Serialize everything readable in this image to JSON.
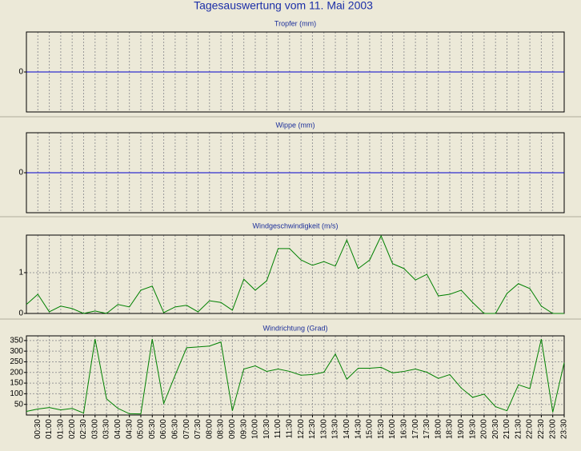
{
  "title": "Tagesauswertung vom 11. Mai 2003",
  "chart_data": [
    {
      "type": "line",
      "title": "Tropfer (mm)",
      "ylim": [
        -1,
        1
      ],
      "yticks": [
        0
      ],
      "grid": true,
      "series": [
        {
          "color": "#0000cc",
          "values": [
            0,
            0,
            0,
            0,
            0,
            0,
            0,
            0,
            0,
            0,
            0,
            0,
            0,
            0,
            0,
            0,
            0,
            0,
            0,
            0,
            0,
            0,
            0,
            0,
            0,
            0,
            0,
            0,
            0,
            0,
            0,
            0,
            0,
            0,
            0,
            0,
            0,
            0,
            0,
            0,
            0,
            0,
            0,
            0,
            0,
            0,
            0,
            0
          ]
        }
      ]
    },
    {
      "type": "line",
      "title": "Wippe (mm)",
      "ylim": [
        -1,
        1
      ],
      "yticks": [
        0
      ],
      "grid": true,
      "series": [
        {
          "color": "#0000cc",
          "values": [
            0,
            0,
            0,
            0,
            0,
            0,
            0,
            0,
            0,
            0,
            0,
            0,
            0,
            0,
            0,
            0,
            0,
            0,
            0,
            0,
            0,
            0,
            0,
            0,
            0,
            0,
            0,
            0,
            0,
            0,
            0,
            0,
            0,
            0,
            0,
            0,
            0,
            0,
            0,
            0,
            0,
            0,
            0,
            0,
            0,
            0,
            0,
            0
          ]
        }
      ]
    },
    {
      "type": "line",
      "title": "Windgeschwindigkeit (m/s)",
      "ylim": [
        0,
        1.92
      ],
      "yticks": [
        0,
        1
      ],
      "grid": true,
      "series": [
        {
          "color": "#008000",
          "values": [
            0.22,
            0.47,
            0.04,
            0.18,
            0.12,
            0,
            0.06,
            0,
            0.22,
            0.16,
            0.57,
            0.67,
            0.02,
            0.16,
            0.2,
            0.04,
            0.31,
            0.27,
            0.08,
            0.84,
            0.57,
            0.8,
            1.59,
            1.59,
            1.31,
            1.18,
            1.27,
            1.16,
            1.8,
            1.1,
            1.31,
            1.9,
            1.22,
            1.1,
            0.82,
            0.96,
            0.43,
            0.47,
            0.57,
            0.27,
            0,
            0,
            0.49,
            0.73,
            0.61,
            0.18,
            0,
            0
          ]
        }
      ]
    },
    {
      "type": "line",
      "title": "Windrichtung (Grad)",
      "ylim": [
        0,
        372
      ],
      "yticks": [
        50,
        100,
        150,
        200,
        250,
        300,
        350
      ],
      "grid": true,
      "categories": [
        null,
        "00:30",
        "01:00",
        "01:30",
        "02:00",
        "02:30",
        "03:00",
        "03:30",
        "04:00",
        "04:30",
        "05:00",
        "05:30",
        "06:00",
        "06:30",
        "07:00",
        "07:30",
        "08:00",
        "08:30",
        "09:00",
        "09:30",
        "10:00",
        "10:30",
        "11:00",
        "11:30",
        "12:00",
        "12:30",
        "13:00",
        "13:30",
        "14:00",
        "14:30",
        "15:00",
        "15:30",
        "16:00",
        "16:30",
        "17:00",
        "17:30",
        "18:00",
        "18:30",
        "19:00",
        "19:30",
        "20:00",
        "20:30",
        "21:00",
        "21:30",
        "22:00",
        "22:30",
        "23:00",
        "23:30"
      ],
      "series": [
        {
          "color": "#008000",
          "values": [
            17,
            28,
            35,
            24,
            31,
            9,
            357,
            76,
            31,
            6,
            5,
            357,
            54,
            187,
            316,
            320,
            324,
            343,
            20,
            216,
            231,
            205,
            216,
            205,
            187,
            190,
            201,
            287,
            168,
            220,
            220,
            224,
            198,
            205,
            216,
            201,
            172,
            190,
            127,
            83,
            98,
            39,
            20,
            142,
            124,
            357,
            13,
            246
          ]
        }
      ]
    }
  ]
}
